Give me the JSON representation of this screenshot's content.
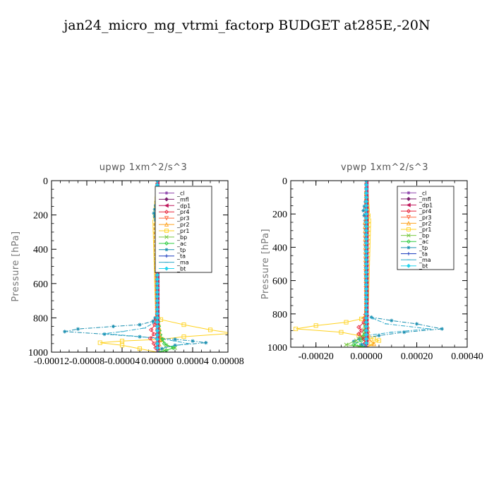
{
  "title": "jan24_micro_mg_vtrmi_factorp  BUDGET at285E,-20N",
  "legend_entries": [
    {
      "name": "_cl",
      "color": "#8e44ad",
      "marker": "star"
    },
    {
      "name": "_mfl",
      "color": "#7b1e6e",
      "marker": "diamond"
    },
    {
      "name": "_dp1",
      "color": "#c0185c",
      "marker": "tri-left"
    },
    {
      "name": "_pr4",
      "color": "#e8233a",
      "marker": "diamond-open"
    },
    {
      "name": "_pr3",
      "color": "#ff6a3d",
      "marker": "tri-down"
    },
    {
      "name": "_pr2",
      "color": "#ffa21f",
      "marker": "tri-up"
    },
    {
      "name": "_pr1",
      "color": "#ffd21f",
      "marker": "square-open"
    },
    {
      "name": "_bp",
      "color": "#7ac943",
      "marker": "x"
    },
    {
      "name": "_ac",
      "color": "#2ecc40",
      "marker": "diamond-open"
    },
    {
      "name": "_tp",
      "color": "#1a8fb0",
      "marker": "star"
    },
    {
      "name": "_ta",
      "color": "#1f3fbf",
      "marker": "plus"
    },
    {
      "name": "_ma",
      "color": "#2aa7c9",
      "marker": "dash"
    },
    {
      "name": "_bt",
      "color": "#22d3ee",
      "marker": "diamond-fill"
    }
  ],
  "chart_data": [
    {
      "type": "line",
      "title": "upwp   1xm^2/s^3",
      "ylabel": "Pressure [hPa]",
      "xlim": [
        -0.00012,
        8e-05
      ],
      "ylim": [
        0,
        1000
      ],
      "y_inverted": true,
      "xticks": [
        -0.00012,
        -8e-05,
        -4e-05,
        0.0,
        4e-05,
        8e-05
      ],
      "xtick_labels": [
        "-0.00012",
        "-0.00008",
        "-0.00004",
        "0.00000",
        "0.00004",
        "0.00008"
      ],
      "yticks": [
        0,
        200,
        400,
        600,
        800,
        1000
      ],
      "ytick_labels": [
        "0",
        "200",
        "400",
        "600",
        "800",
        "1000"
      ],
      "legend_position": "top-right",
      "series": [
        {
          "name": "_pr1",
          "points": [
            [
              0,
              80
            ],
            [
              -2e-06,
              180
            ],
            [
              -3e-06,
              240
            ],
            [
              0,
              780
            ],
            [
              4e-06,
              810
            ],
            [
              3e-05,
              840
            ],
            [
              6e-05,
              870
            ],
            [
              8.5e-05,
              890
            ],
            [
              3e-05,
              910
            ],
            [
              5e-06,
              925
            ],
            [
              -4e-05,
              935
            ],
            [
              -6.5e-05,
              945
            ],
            [
              -4e-05,
              960
            ],
            [
              -2e-05,
              980
            ],
            [
              0,
              1000
            ]
          ]
        },
        {
          "name": "_tp",
          "points": [
            [
              0,
              100
            ],
            [
              -4e-06,
              190
            ],
            [
              -2e-06,
              230
            ],
            [
              0,
              780
            ],
            [
              -5e-06,
              820
            ],
            [
              -2e-05,
              840
            ],
            [
              -5e-05,
              850
            ],
            [
              -9e-05,
              865
            ],
            [
              -0.000105,
              880
            ],
            [
              -6e-05,
              895
            ],
            [
              -2e-05,
              910
            ],
            [
              2e-05,
              925
            ],
            [
              4e-05,
              935
            ],
            [
              5.5e-05,
              945
            ],
            [
              2e-05,
              960
            ],
            [
              5e-06,
              980
            ],
            [
              0,
              1000
            ]
          ]
        },
        {
          "name": "_ma",
          "points": [
            [
              0,
              0
            ],
            [
              0,
              780
            ],
            [
              -4e-06,
              830
            ],
            [
              -1.5e-05,
              860
            ],
            [
              -4e-05,
              880
            ],
            [
              -6e-05,
              892
            ],
            [
              -3e-05,
              905
            ],
            [
              0,
              920
            ],
            [
              2e-05,
              935
            ],
            [
              3.5e-05,
              950
            ],
            [
              1e-05,
              970
            ],
            [
              0,
              1000
            ]
          ]
        },
        {
          "name": "_bp",
          "points": [
            [
              0,
              780
            ],
            [
              2e-06,
              880
            ],
            [
              5e-06,
              930
            ],
            [
              1e-05,
              960
            ],
            [
              2e-05,
              975
            ],
            [
              8e-06,
              990
            ],
            [
              0,
              1000
            ]
          ]
        },
        {
          "name": "_ac",
          "points": [
            [
              0,
              800
            ],
            [
              3e-06,
              900
            ],
            [
              8e-06,
              950
            ],
            [
              1.8e-05,
              975
            ],
            [
              1e-05,
              990
            ],
            [
              0,
              1000
            ]
          ]
        },
        {
          "name": "_pr4",
          "points": [
            [
              0,
              780
            ],
            [
              -3e-06,
              840
            ],
            [
              -7e-06,
              870
            ],
            [
              -4e-06,
              895
            ],
            [
              -8e-06,
              920
            ],
            [
              -4e-06,
              950
            ],
            [
              0,
              1000
            ]
          ]
        },
        {
          "name": "_pr2",
          "points": [
            [
              0,
              100
            ],
            [
              2e-06,
              190
            ],
            [
              -2e-06,
              250
            ],
            [
              0,
              780
            ],
            [
              3e-06,
              930
            ],
            [
              0,
              1000
            ]
          ]
        },
        {
          "name": "_pr3",
          "points": [
            [
              0,
              0
            ],
            [
              0,
              1000
            ]
          ]
        },
        {
          "name": "_cl",
          "points": [
            [
              0,
              0
            ],
            [
              0,
              1000
            ]
          ]
        },
        {
          "name": "_mfl",
          "points": [
            [
              0,
              0
            ],
            [
              0,
              1000
            ]
          ]
        },
        {
          "name": "_dp1",
          "points": [
            [
              0,
              0
            ],
            [
              0,
              1000
            ]
          ]
        },
        {
          "name": "_ta",
          "points": [
            [
              0,
              0
            ],
            [
              0,
              1000
            ]
          ]
        },
        {
          "name": "_bt",
          "points": [
            [
              0,
              0
            ],
            [
              0,
              1000
            ]
          ]
        }
      ]
    },
    {
      "type": "line",
      "title": "vpwp   1xm^2/s^3",
      "ylabel": "Pressure [hPa]",
      "xlim": [
        -0.0003,
        0.0004
      ],
      "ylim": [
        0,
        1000
      ],
      "y_inverted": true,
      "xticks": [
        -0.0002,
        0.0,
        0.0002,
        0.0004
      ],
      "xtick_labels": [
        "-0.00020",
        "0.00000",
        "0.00020",
        "0.00040"
      ],
      "yticks": [
        0,
        200,
        400,
        600,
        800,
        1000
      ],
      "ytick_labels": [
        "0",
        "200",
        "400",
        "600",
        "800",
        "1000"
      ],
      "legend_position": "top-right",
      "series": [
        {
          "name": "_pr1",
          "points": [
            [
              0,
              80
            ],
            [
              5e-06,
              180
            ],
            [
              1e-05,
              240
            ],
            [
              0,
              800
            ],
            [
              -2e-05,
              830
            ],
            [
              -8e-05,
              850
            ],
            [
              -0.0002,
              870
            ],
            [
              -0.00028,
              890
            ],
            [
              -0.0001,
              910
            ],
            [
              -3e-05,
              930
            ],
            [
              3e-05,
              950
            ],
            [
              5e-05,
              960
            ],
            [
              2e-05,
              980
            ],
            [
              0,
              1000
            ]
          ]
        },
        {
          "name": "_tp",
          "points": [
            [
              0,
              100
            ],
            [
              -1.2e-05,
              180
            ],
            [
              -5e-06,
              240
            ],
            [
              0,
              800
            ],
            [
              2e-05,
              820
            ],
            [
              0.0001,
              840
            ],
            [
              0.0002,
              860
            ],
            [
              0.0003,
              890
            ],
            [
              0.00015,
              910
            ],
            [
              5e-05,
              930
            ],
            [
              -3e-05,
              950
            ],
            [
              -5e-05,
              965
            ],
            [
              -2e-05,
              985
            ],
            [
              0,
              1000
            ]
          ]
        },
        {
          "name": "_ma",
          "points": [
            [
              0,
              0
            ],
            [
              0,
              800
            ],
            [
              3e-05,
              830
            ],
            [
              8e-05,
              860
            ],
            [
              0.00025,
              890
            ],
            [
              0.0001,
              910
            ],
            [
              0,
              930
            ],
            [
              -3e-05,
              955
            ],
            [
              0,
              1000
            ]
          ]
        },
        {
          "name": "_bp",
          "points": [
            [
              0,
              800
            ],
            [
              -1e-05,
              920
            ],
            [
              -4e-05,
              960
            ],
            [
              -8e-05,
              985
            ],
            [
              -3e-05,
              995
            ],
            [
              0,
              1000
            ]
          ]
        },
        {
          "name": "_ac",
          "points": [
            [
              0,
              800
            ],
            [
              -5e-06,
              920
            ],
            [
              -2e-05,
              960
            ],
            [
              -5e-05,
              985
            ],
            [
              0,
              1000
            ]
          ]
        },
        {
          "name": "_pr4",
          "points": [
            [
              0,
              780
            ],
            [
              -1e-05,
              850
            ],
            [
              -3e-05,
              880
            ],
            [
              -2e-05,
              900
            ],
            [
              -3e-05,
              920
            ],
            [
              -1e-05,
              950
            ],
            [
              0,
              1000
            ]
          ]
        },
        {
          "name": "_pr2",
          "points": [
            [
              0,
              100
            ],
            [
              5e-06,
              200
            ],
            [
              -5e-06,
              250
            ],
            [
              0,
              800
            ],
            [
              1e-05,
              950
            ],
            [
              3e-05,
              980
            ],
            [
              0,
              1000
            ]
          ]
        },
        {
          "name": "_pr3",
          "points": [
            [
              0,
              0
            ],
            [
              0,
              1000
            ]
          ]
        },
        {
          "name": "_cl",
          "points": [
            [
              0,
              0
            ],
            [
              0,
              1000
            ]
          ]
        },
        {
          "name": "_mfl",
          "points": [
            [
              0,
              0
            ],
            [
              0,
              1000
            ]
          ]
        },
        {
          "name": "_dp1",
          "points": [
            [
              0,
              0
            ],
            [
              0,
              1000
            ]
          ]
        },
        {
          "name": "_ta",
          "points": [
            [
              0,
              0
            ],
            [
              0,
              1000
            ]
          ]
        },
        {
          "name": "_bt",
          "points": [
            [
              0,
              0
            ],
            [
              0,
              1000
            ]
          ]
        }
      ]
    }
  ]
}
